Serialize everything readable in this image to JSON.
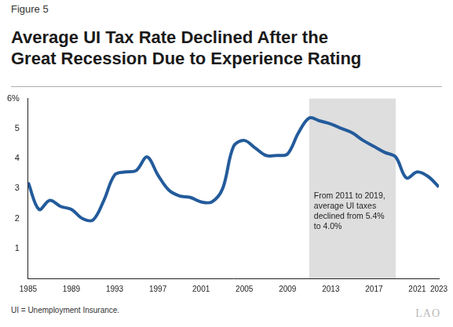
{
  "chart_data": {
    "type": "line",
    "figure_label": "Figure 5",
    "title": "Average UI Tax Rate Declined After the\nGreat Recession Due to Experience Rating",
    "footnote": "UI = Unemployment Insurance.",
    "logo": "LAO",
    "x": [
      1985,
      1986,
      1987,
      1988,
      1989,
      1990,
      1991,
      1992,
      1993,
      1994,
      1995,
      1996,
      1997,
      1998,
      1999,
      2000,
      2001,
      2002,
      2003,
      2004,
      2005,
      2006,
      2007,
      2008,
      2009,
      2010,
      2011,
      2012,
      2013,
      2014,
      2015,
      2016,
      2017,
      2018,
      2019,
      2020,
      2021,
      2022,
      2023
    ],
    "values": [
      3.2,
      2.3,
      2.6,
      2.4,
      2.3,
      2.0,
      1.95,
      2.6,
      3.45,
      3.55,
      3.6,
      4.05,
      3.45,
      2.95,
      2.75,
      2.7,
      2.55,
      2.55,
      3.0,
      4.4,
      4.6,
      4.35,
      4.1,
      4.1,
      4.15,
      4.85,
      5.35,
      5.25,
      5.15,
      5.0,
      4.85,
      4.6,
      4.4,
      4.2,
      4.05,
      3.35,
      3.55,
      3.4,
      3.05
    ],
    "color": "#235b9b",
    "xlim": [
      1985,
      2023
    ],
    "xticks": [
      1985,
      1989,
      1993,
      1997,
      2001,
      2005,
      2009,
      2013,
      2017,
      2021,
      2023
    ],
    "ylim": [
      0,
      6
    ],
    "yticks": [
      1,
      2,
      3,
      4,
      5,
      {
        "value": 6,
        "label": "6%"
      }
    ],
    "grid": false,
    "highlight": {
      "xlim": [
        2011,
        2019
      ],
      "text": "From 2011 to 2019,\naverage UI taxes\ndeclined from 5.4%\nto 4.0%"
    }
  }
}
